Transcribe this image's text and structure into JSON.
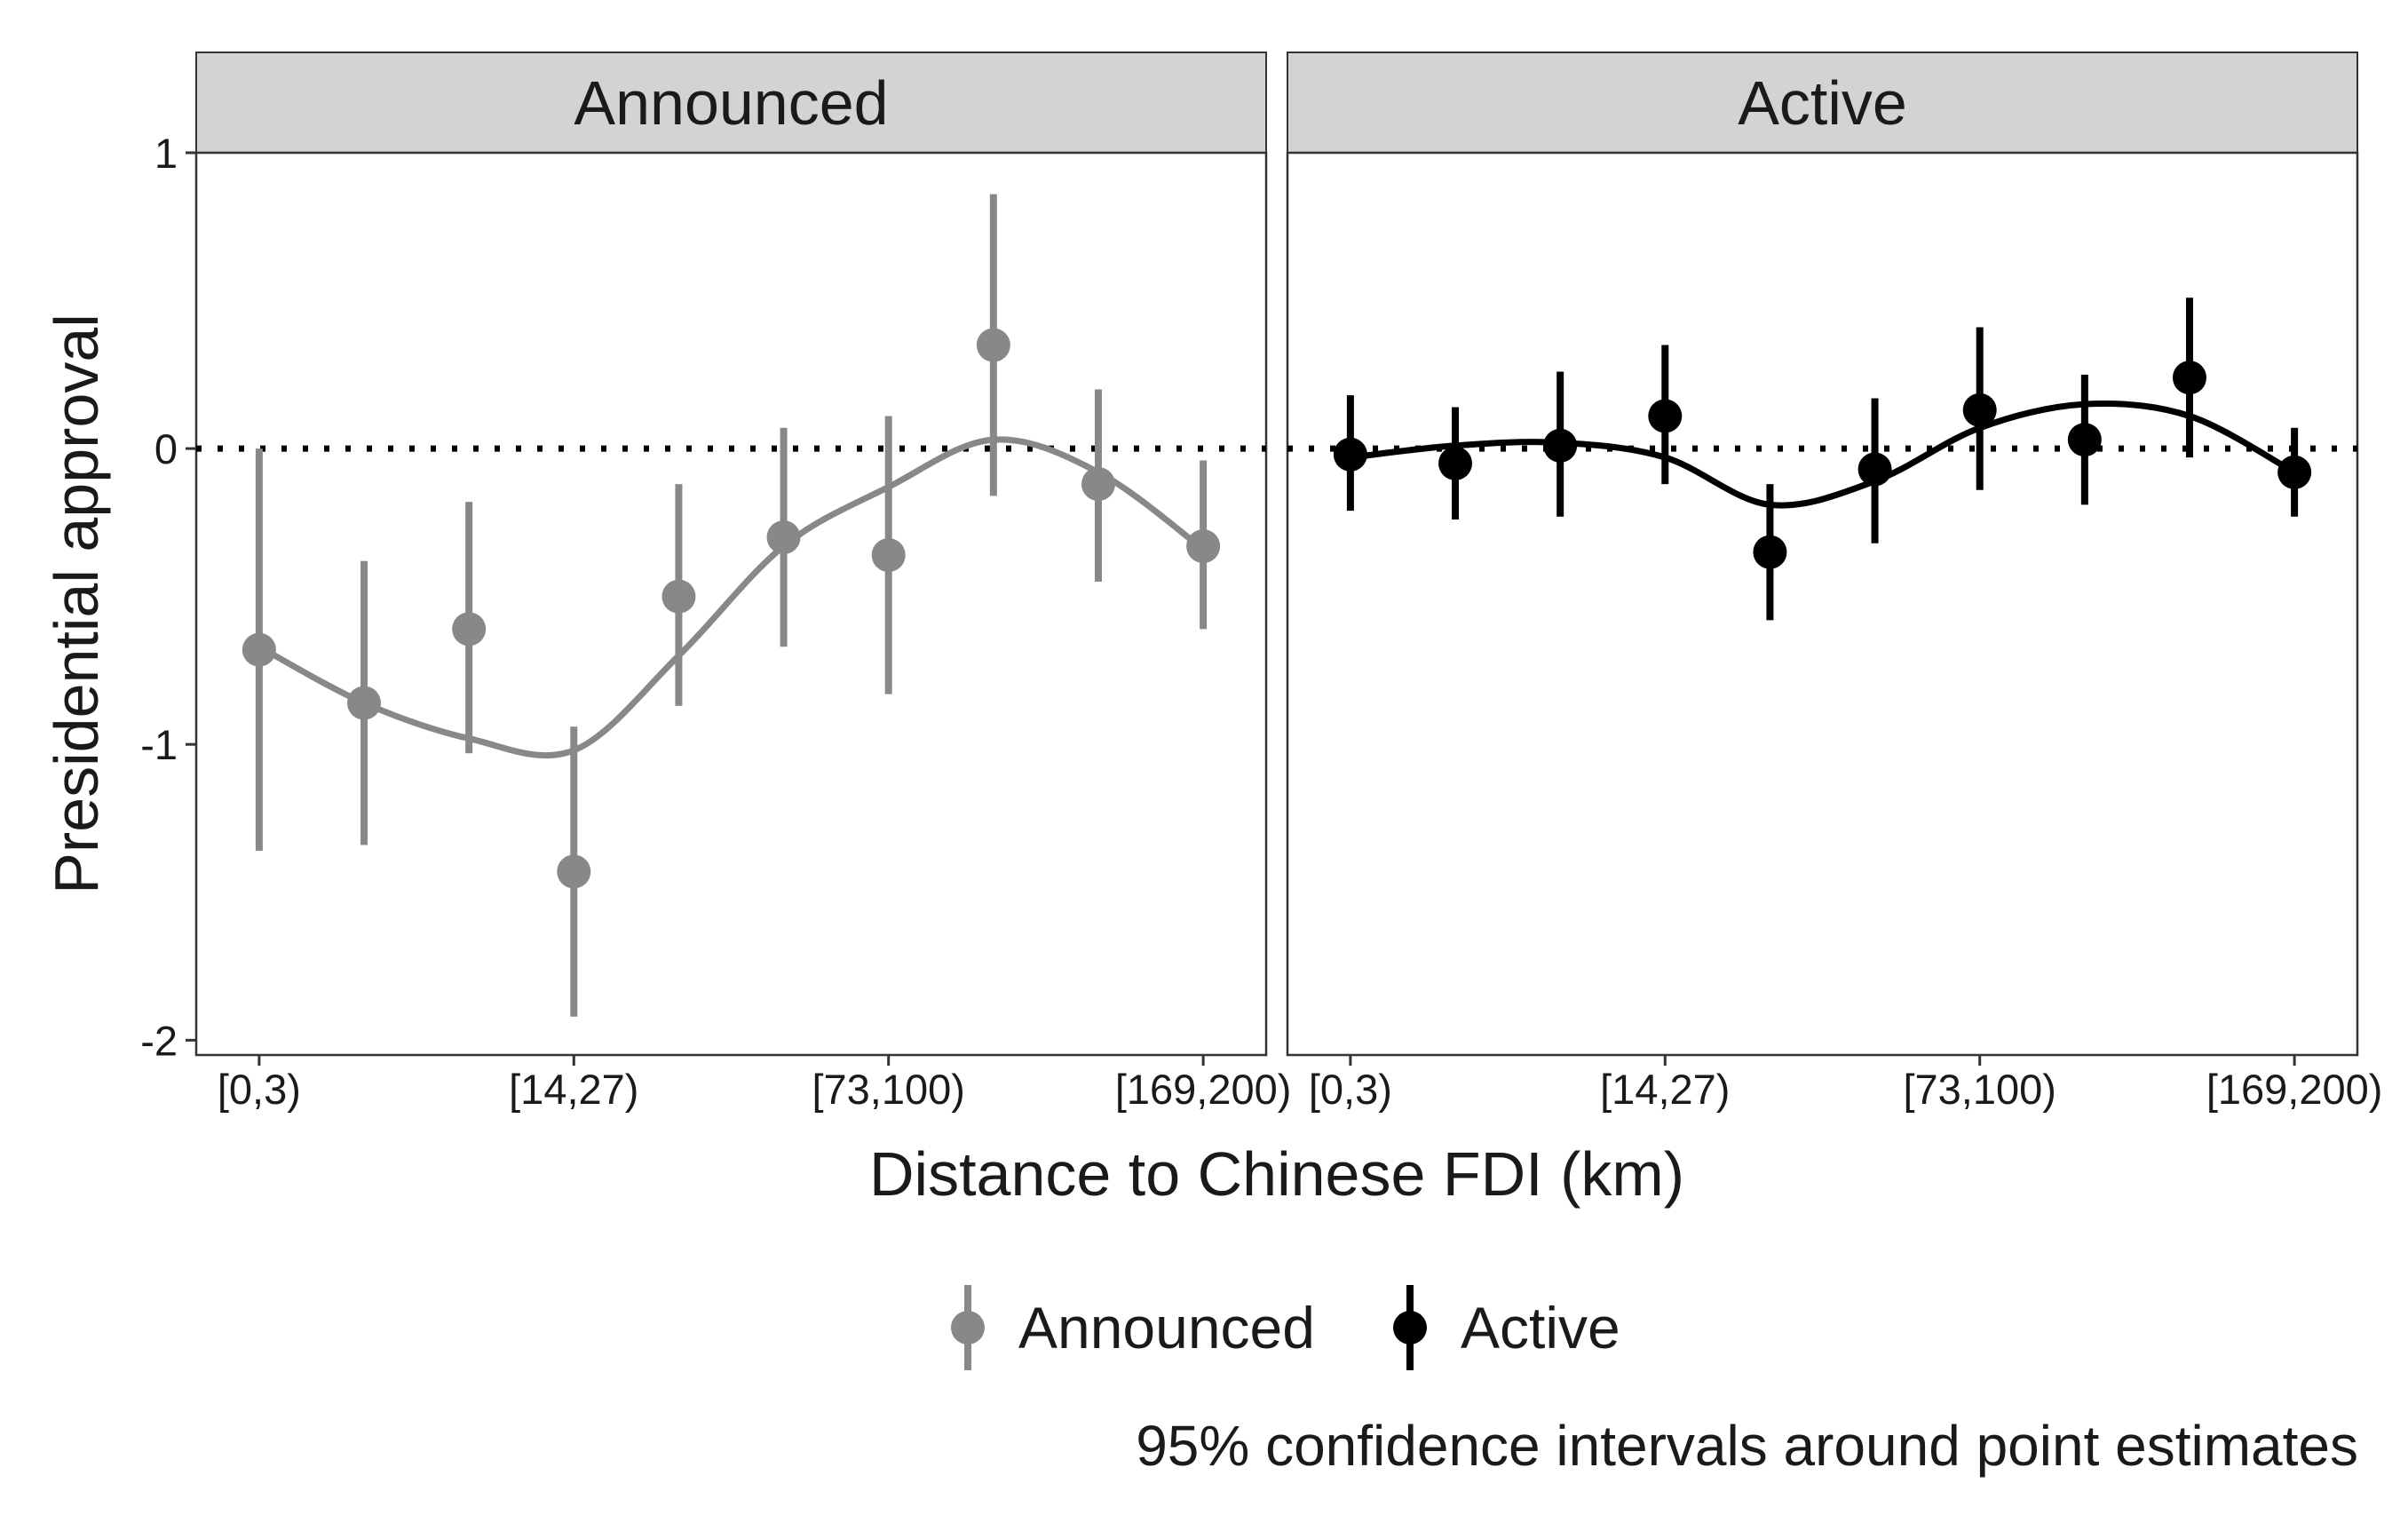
{
  "chart_data": {
    "type": "scatter",
    "title": "",
    "xlabel": "Distance to Chinese FDI (km)",
    "ylabel": "Presidential approval",
    "ylim": [
      -2.05,
      1.0
    ],
    "yticks": [
      1,
      0,
      -1,
      -2
    ],
    "ytick_labels": [
      "1",
      "0",
      "-1",
      "-2"
    ],
    "x_positions": [
      1,
      2,
      3,
      4,
      5,
      6,
      7,
      8,
      9,
      10
    ],
    "xtick_positions": [
      1,
      4,
      7,
      10
    ],
    "xtick_labels": [
      "[0,3)",
      "[14,27)",
      "[73,100)",
      "[169,200)"
    ],
    "reference_line": {
      "y": 0,
      "style": "dotted"
    },
    "error_bars": "95% confidence intervals",
    "caption": "95% confidence intervals around point estimates",
    "legend": {
      "position": "bottom",
      "entries": [
        "Announced",
        "Active"
      ]
    },
    "panels": [
      {
        "name": "Announced",
        "color": "#888888",
        "estimates": [
          -0.68,
          -0.86,
          -0.61,
          -1.43,
          -0.5,
          -0.3,
          -0.36,
          0.35,
          -0.12,
          -0.33
        ],
        "ci_low": [
          -1.36,
          -1.34,
          -1.03,
          -1.92,
          -0.87,
          -0.67,
          -0.83,
          -0.16,
          -0.45,
          -0.61
        ],
        "ci_high": [
          0.0,
          -0.38,
          -0.18,
          -0.94,
          -0.12,
          0.07,
          0.11,
          0.86,
          0.2,
          -0.04
        ],
        "smooth": [
          -0.67,
          -0.86,
          -0.98,
          -1.02,
          -0.7,
          -0.33,
          -0.13,
          0.03,
          -0.08,
          -0.34
        ]
      },
      {
        "name": "Active",
        "color": "#000000",
        "estimates": [
          -0.02,
          -0.05,
          0.01,
          0.11,
          -0.35,
          -0.07,
          0.13,
          0.03,
          0.24,
          -0.08
        ],
        "ci_low": [
          -0.21,
          -0.24,
          -0.23,
          -0.12,
          -0.58,
          -0.32,
          -0.14,
          -0.19,
          -0.03,
          -0.23
        ],
        "ci_high": [
          0.18,
          0.14,
          0.26,
          0.35,
          -0.12,
          0.17,
          0.41,
          0.25,
          0.51,
          0.07
        ],
        "smooth": [
          -0.03,
          0.01,
          0.02,
          -0.03,
          -0.19,
          -0.11,
          0.07,
          0.15,
          0.11,
          -0.08
        ]
      }
    ]
  }
}
